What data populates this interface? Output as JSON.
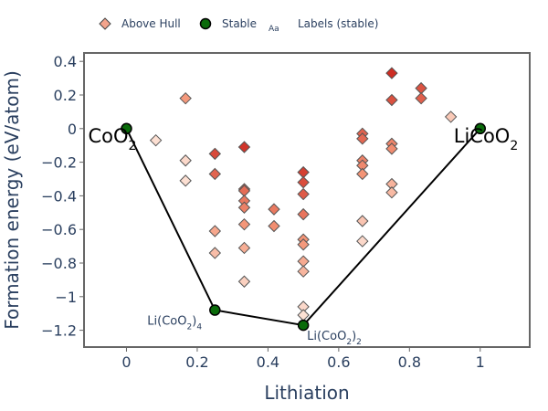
{
  "chart_data": {
    "type": "scatter",
    "xlabel": "Lithiation",
    "ylabel": "Formation energy (eV/atom)",
    "xlim": [
      -0.12,
      1.14
    ],
    "ylim": [
      -1.3,
      0.45
    ],
    "xticks": [
      0,
      0.2,
      0.4,
      0.6,
      0.8,
      1
    ],
    "xtick_labels": [
      "0",
      "0.2",
      "0.4",
      "0.6",
      "0.8",
      "1"
    ],
    "yticks": [
      0.4,
      0.2,
      0,
      -0.2,
      -0.4,
      -0.6,
      -0.8,
      -1,
      -1.2
    ],
    "ytick_labels": [
      "0.4",
      "0.2",
      "0",
      "−0.2",
      "−0.4",
      "−0.6",
      "−0.8",
      "−1",
      "−1.2"
    ],
    "legend": {
      "placement": "top",
      "above_hull": "Above Hull",
      "stable": "Stable",
      "labels_symbol": "Aa",
      "labels": "Labels (stable)"
    },
    "series": [
      {
        "name": "Above Hull",
        "marker": "diamond",
        "points": [
          {
            "x": 0.083,
            "y": -0.07,
            "e": 0.07
          },
          {
            "x": 0.167,
            "y": 0.18,
            "e": 0.48
          },
          {
            "x": 0.167,
            "y": -0.19,
            "e": 0.11
          },
          {
            "x": 0.167,
            "y": -0.31,
            "e": 0.07
          },
          {
            "x": 0.25,
            "y": -0.15,
            "e": 0.86
          },
          {
            "x": 0.25,
            "y": -0.27,
            "e": 0.74
          },
          {
            "x": 0.25,
            "y": -0.61,
            "e": 0.4
          },
          {
            "x": 0.25,
            "y": -0.74,
            "e": 0.27
          },
          {
            "x": 0.333,
            "y": -0.11,
            "e": 0.96
          },
          {
            "x": 0.333,
            "y": -0.36,
            "e": 0.71
          },
          {
            "x": 0.333,
            "y": -0.37,
            "e": 0.7
          },
          {
            "x": 0.333,
            "y": -0.43,
            "e": 0.64
          },
          {
            "x": 0.333,
            "y": -0.47,
            "e": 0.6
          },
          {
            "x": 0.333,
            "y": -0.57,
            "e": 0.5
          },
          {
            "x": 0.333,
            "y": -0.71,
            "e": 0.36
          },
          {
            "x": 0.333,
            "y": -0.91,
            "e": 0.16
          },
          {
            "x": 0.417,
            "y": -0.48,
            "e": 0.64
          },
          {
            "x": 0.417,
            "y": -0.58,
            "e": 0.54
          },
          {
            "x": 0.5,
            "y": -0.26,
            "e": 0.91
          },
          {
            "x": 0.5,
            "y": -0.32,
            "e": 0.85
          },
          {
            "x": 0.5,
            "y": -0.39,
            "e": 0.78
          },
          {
            "x": 0.5,
            "y": -0.51,
            "e": 0.66
          },
          {
            "x": 0.5,
            "y": -0.66,
            "e": 0.51
          },
          {
            "x": 0.5,
            "y": -0.69,
            "e": 0.48
          },
          {
            "x": 0.5,
            "y": -0.79,
            "e": 0.38
          },
          {
            "x": 0.5,
            "y": -0.85,
            "e": 0.32
          },
          {
            "x": 0.5,
            "y": -1.06,
            "e": 0.11
          },
          {
            "x": 0.5,
            "y": -1.11,
            "e": 0.06
          },
          {
            "x": 0.667,
            "y": -0.03,
            "e": 0.75
          },
          {
            "x": 0.667,
            "y": -0.06,
            "e": 0.72
          },
          {
            "x": 0.667,
            "y": -0.19,
            "e": 0.59
          },
          {
            "x": 0.667,
            "y": -0.22,
            "e": 0.56
          },
          {
            "x": 0.667,
            "y": -0.27,
            "e": 0.51
          },
          {
            "x": 0.667,
            "y": -0.55,
            "e": 0.23
          },
          {
            "x": 0.667,
            "y": -0.67,
            "e": 0.11
          },
          {
            "x": 0.75,
            "y": 0.33,
            "e": 1.0
          },
          {
            "x": 0.75,
            "y": 0.17,
            "e": 0.83
          },
          {
            "x": 0.75,
            "y": -0.09,
            "e": 0.58
          },
          {
            "x": 0.75,
            "y": -0.12,
            "e": 0.55
          },
          {
            "x": 0.75,
            "y": -0.33,
            "e": 0.33
          },
          {
            "x": 0.75,
            "y": -0.38,
            "e": 0.29
          },
          {
            "x": 0.833,
            "y": 0.24,
            "e": 0.82
          },
          {
            "x": 0.833,
            "y": 0.18,
            "e": 0.76
          },
          {
            "x": 0.917,
            "y": 0.07,
            "e": 0.2
          }
        ]
      },
      {
        "name": "Stable",
        "marker": "circle",
        "points": [
          {
            "x": 0,
            "y": 0,
            "label": "CoO",
            "label_sub": "2",
            "label_size": "big",
            "label_anchor": "left"
          },
          {
            "x": 0.25,
            "y": -1.08,
            "label": "Li(CoO",
            "label_sub": "2",
            "label_close": ")",
            "label_sub2": "4",
            "label_size": "small",
            "label_anchor": "left-below"
          },
          {
            "x": 0.5,
            "y": -1.17,
            "label": "Li(CoO",
            "label_sub": "2",
            "label_close": ")",
            "label_sub2": "2",
            "label_size": "small",
            "label_anchor": "right-below"
          },
          {
            "x": 1,
            "y": 0,
            "label": "LiCoO",
            "label_sub": "2",
            "label_size": "big",
            "label_anchor": "right"
          }
        ]
      }
    ],
    "hull_line": [
      [
        0,
        0
      ],
      [
        0.25,
        -1.08
      ],
      [
        0.5,
        -1.17
      ],
      [
        1,
        0
      ]
    ]
  }
}
